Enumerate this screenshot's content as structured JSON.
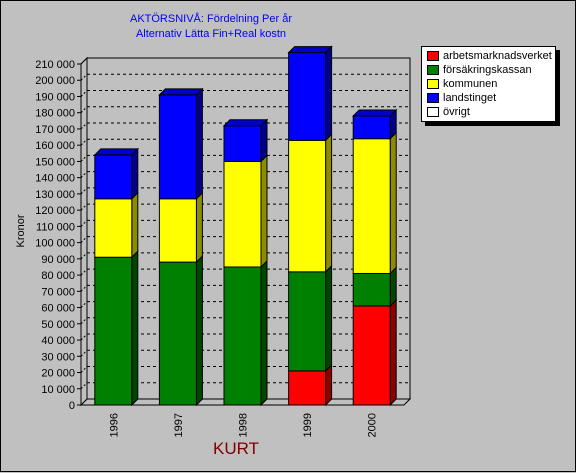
{
  "chart_data": {
    "type": "bar",
    "stacked": true,
    "title": "AKTÖRSNIVÅ: Fördelning  Per år",
    "subtitle": "Alternativ Lätta Fin+Real kostn",
    "xlabel": "KURT",
    "ylabel": "Kronor",
    "ylim": [
      0,
      210000
    ],
    "yticks": [
      0,
      10000,
      20000,
      30000,
      40000,
      50000,
      60000,
      70000,
      80000,
      90000,
      100000,
      110000,
      120000,
      130000,
      140000,
      150000,
      160000,
      170000,
      180000,
      190000,
      200000,
      210000
    ],
    "ytick_labels": [
      "0",
      "10 000",
      "20 000",
      "30 000",
      "40 000",
      "50 000",
      "60 000",
      "70 000",
      "80 000",
      "90 000",
      "100 000",
      "110 000",
      "120 000",
      "130 000",
      "140 000",
      "150 000",
      "160 000",
      "170 000",
      "180 000",
      "190 000",
      "200 000",
      "210 000"
    ],
    "grid": true,
    "legend_position": "top-right",
    "categories": [
      "1996",
      "1997",
      "1998",
      "1999",
      "2000"
    ],
    "series": [
      {
        "name": "arbetsmarknadsverket",
        "color": "#ff0000",
        "values": [
          0,
          0,
          0,
          21000,
          61000
        ]
      },
      {
        "name": "försäkringskassan",
        "color": "#008000",
        "values": [
          91000,
          88000,
          85000,
          61000,
          20000
        ]
      },
      {
        "name": "kommunen",
        "color": "#ffff00",
        "values": [
          36000,
          39000,
          65000,
          81000,
          83000
        ]
      },
      {
        "name": "landstinget",
        "color": "#0000ff",
        "values": [
          27000,
          64000,
          22000,
          54000,
          14000
        ]
      },
      {
        "name": "övrigt",
        "color": "#ffffff",
        "values": [
          0,
          0,
          0,
          0,
          0
        ]
      }
    ]
  }
}
